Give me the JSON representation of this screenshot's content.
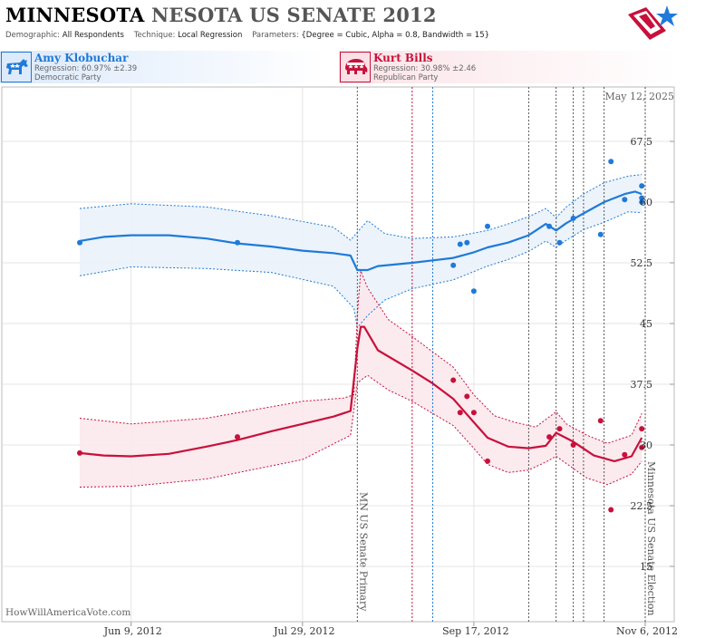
{
  "header": {
    "title_state": "MINNESOTA",
    "title_rest": "NESOTA US SENATE 2012",
    "demographic_label": "Demographic:",
    "demographic_value": "All Respondents",
    "technique_label": "Technique:",
    "technique_value": "Local Regression",
    "parameters_label": "Parameters:",
    "parameters_value": "{Degree = Cubic, Alpha = 0.8, Bandwidth = 15}",
    "logo_icon": "flag-star-icon"
  },
  "candidates": [
    {
      "name": "Amy Klobuchar",
      "regression": "Regression: 60.97% ±2.39",
      "party": "Democratic Party",
      "icon": "donkey-icon",
      "color": "#1f7ad8"
    },
    {
      "name": "Kurt Bills",
      "regression": "Regression: 30.98% ±2.46",
      "party": "Republican Party",
      "icon": "elephant-icon",
      "color": "#c8103b"
    }
  ],
  "chart": {
    "date_label": "May 12, 2025",
    "watermark": "HowWillAmericaVote.com",
    "primary_label": "MN US Senate Primary",
    "election_label": "Minnesota US Senate Election"
  },
  "chart_data": {
    "type": "scatter",
    "x_axis": {
      "type": "date",
      "range": [
        "2012-05-25",
        "2012-11-06"
      ],
      "ticks": [
        {
          "date": "2012-06-09",
          "label": "Jun 9, 2012"
        },
        {
          "date": "2012-07-29",
          "label": "Jul 29, 2012"
        },
        {
          "date": "2012-09-17",
          "label": "Sep 17, 2012"
        },
        {
          "date": "2012-11-06",
          "label": "Nov 6, 2012"
        }
      ]
    },
    "y_axis": {
      "range": [
        10,
        70
      ],
      "ticks": [
        15,
        22.5,
        30,
        37.5,
        45,
        52.5,
        60,
        67.5
      ],
      "tick_labels": [
        "15",
        "22.5",
        "30",
        "37.5",
        "45",
        "52.5",
        "60",
        "67.5"
      ],
      "position": "right"
    },
    "events": [
      {
        "date": "2012-08-14",
        "color": "#555555",
        "label_key": "primary"
      },
      {
        "date": "2012-08-30",
        "color": "#c8103b"
      },
      {
        "date": "2012-09-05",
        "color": "#1f7ad8"
      },
      {
        "date": "2012-10-03",
        "color": "#555555"
      },
      {
        "date": "2012-10-11",
        "color": "#555555"
      },
      {
        "date": "2012-10-16",
        "color": "#555555"
      },
      {
        "date": "2012-10-19",
        "color": "#555555"
      },
      {
        "date": "2012-10-25",
        "color": "#555555"
      },
      {
        "date": "2012-11-06",
        "color": "#555555",
        "label_key": "election"
      }
    ],
    "series": [
      {
        "name": "Amy Klobuchar",
        "color": "#1f7ad8",
        "band_fill": "#eaf2fb",
        "points": [
          [
            "2012-05-25",
            55.0
          ],
          [
            "2012-07-10",
            55.0
          ],
          [
            "2012-09-11",
            52.2
          ],
          [
            "2012-09-13",
            54.8
          ],
          [
            "2012-09-15",
            55.0
          ],
          [
            "2012-09-17",
            49.0
          ],
          [
            "2012-09-21",
            57.0
          ],
          [
            "2012-10-09",
            57.0
          ],
          [
            "2012-10-12",
            55.0
          ],
          [
            "2012-10-16",
            58.0
          ],
          [
            "2012-10-24",
            56.0
          ],
          [
            "2012-10-27",
            65.0
          ],
          [
            "2012-10-31",
            60.3
          ],
          [
            "2012-11-05",
            62.0
          ],
          [
            "2012-11-05",
            60.5
          ],
          [
            "2012-11-05",
            60.0
          ]
        ],
        "regression": [
          [
            "2012-05-25",
            55.2
          ],
          [
            "2012-06-01",
            55.7
          ],
          [
            "2012-06-09",
            55.9
          ],
          [
            "2012-06-20",
            55.9
          ],
          [
            "2012-07-01",
            55.5
          ],
          [
            "2012-07-10",
            54.9
          ],
          [
            "2012-07-20",
            54.5
          ],
          [
            "2012-07-29",
            54.0
          ],
          [
            "2012-08-07",
            53.7
          ],
          [
            "2012-08-12",
            53.4
          ],
          [
            "2012-08-14",
            51.6
          ],
          [
            "2012-08-17",
            51.6
          ],
          [
            "2012-08-20",
            52.1
          ],
          [
            "2012-08-30",
            52.5
          ],
          [
            "2012-09-05",
            52.8
          ],
          [
            "2012-09-11",
            53.1
          ],
          [
            "2012-09-17",
            53.8
          ],
          [
            "2012-09-21",
            54.4
          ],
          [
            "2012-09-27",
            55.0
          ],
          [
            "2012-10-03",
            55.9
          ],
          [
            "2012-10-08",
            57.3
          ],
          [
            "2012-10-11",
            56.5
          ],
          [
            "2012-10-14",
            57.4
          ],
          [
            "2012-10-19",
            58.6
          ],
          [
            "2012-10-25",
            60.0
          ],
          [
            "2012-10-31",
            61.0
          ],
          [
            "2012-11-03",
            61.3
          ],
          [
            "2012-11-05",
            61.0
          ]
        ],
        "upper": [
          [
            "2012-05-25",
            59.2
          ],
          [
            "2012-06-09",
            59.8
          ],
          [
            "2012-07-01",
            59.4
          ],
          [
            "2012-07-20",
            58.3
          ],
          [
            "2012-08-07",
            56.9
          ],
          [
            "2012-08-12",
            55.3
          ],
          [
            "2012-08-14",
            56.3
          ],
          [
            "2012-08-17",
            57.7
          ],
          [
            "2012-08-22",
            56.1
          ],
          [
            "2012-08-30",
            55.5
          ],
          [
            "2012-09-11",
            55.7
          ],
          [
            "2012-09-21",
            56.5
          ],
          [
            "2012-09-27",
            57.3
          ],
          [
            "2012-10-03",
            58.2
          ],
          [
            "2012-10-08",
            59.2
          ],
          [
            "2012-10-11",
            58.1
          ],
          [
            "2012-10-14",
            59.4
          ],
          [
            "2012-10-19",
            61.0
          ],
          [
            "2012-10-25",
            62.4
          ],
          [
            "2012-11-01",
            63.2
          ],
          [
            "2012-11-05",
            63.4
          ]
        ],
        "lower": [
          [
            "2012-05-25",
            50.9
          ],
          [
            "2012-06-09",
            52.0
          ],
          [
            "2012-07-01",
            51.8
          ],
          [
            "2012-07-20",
            51.3
          ],
          [
            "2012-08-07",
            49.6
          ],
          [
            "2012-08-13",
            46.9
          ],
          [
            "2012-08-14",
            44.5
          ],
          [
            "2012-08-17",
            46.0
          ],
          [
            "2012-08-22",
            47.9
          ],
          [
            "2012-08-30",
            49.3
          ],
          [
            "2012-09-11",
            50.4
          ],
          [
            "2012-09-21",
            52.1
          ],
          [
            "2012-09-27",
            52.9
          ],
          [
            "2012-10-03",
            53.9
          ],
          [
            "2012-10-08",
            55.2
          ],
          [
            "2012-10-11",
            54.4
          ],
          [
            "2012-10-14",
            55.3
          ],
          [
            "2012-10-19",
            56.6
          ],
          [
            "2012-10-25",
            57.5
          ],
          [
            "2012-11-01",
            58.8
          ],
          [
            "2012-11-05",
            58.7
          ]
        ]
      },
      {
        "name": "Kurt Bills",
        "color": "#c8103b",
        "band_fill": "#fbe8ec",
        "points": [
          [
            "2012-05-25",
            29.0
          ],
          [
            "2012-07-10",
            31.0
          ],
          [
            "2012-09-11",
            38.0
          ],
          [
            "2012-09-13",
            34.0
          ],
          [
            "2012-09-15",
            36.0
          ],
          [
            "2012-09-17",
            34.0
          ],
          [
            "2012-09-21",
            28.0
          ],
          [
            "2012-10-09",
            31.0
          ],
          [
            "2012-10-12",
            32.0
          ],
          [
            "2012-10-16",
            30.0
          ],
          [
            "2012-10-24",
            33.0
          ],
          [
            "2012-10-27",
            22.0
          ],
          [
            "2012-10-31",
            28.8
          ],
          [
            "2012-11-05",
            32.0
          ],
          [
            "2012-11-05",
            29.7
          ]
        ],
        "regression": [
          [
            "2012-05-25",
            29.0
          ],
          [
            "2012-06-01",
            28.7
          ],
          [
            "2012-06-09",
            28.6
          ],
          [
            "2012-06-20",
            28.9
          ],
          [
            "2012-07-01",
            29.8
          ],
          [
            "2012-07-10",
            30.6
          ],
          [
            "2012-07-20",
            31.7
          ],
          [
            "2012-07-29",
            32.6
          ],
          [
            "2012-08-07",
            33.5
          ],
          [
            "2012-08-12",
            34.2
          ],
          [
            "2012-08-14",
            41.9
          ],
          [
            "2012-08-15",
            44.6
          ],
          [
            "2012-08-16",
            44.6
          ],
          [
            "2012-08-20",
            41.7
          ],
          [
            "2012-08-30",
            39.2
          ],
          [
            "2012-09-05",
            37.6
          ],
          [
            "2012-09-11",
            35.7
          ],
          [
            "2012-09-17",
            32.8
          ],
          [
            "2012-09-21",
            30.9
          ],
          [
            "2012-09-27",
            29.8
          ],
          [
            "2012-10-03",
            29.6
          ],
          [
            "2012-10-08",
            29.9
          ],
          [
            "2012-10-11",
            31.5
          ],
          [
            "2012-10-16",
            30.4
          ],
          [
            "2012-10-22",
            28.7
          ],
          [
            "2012-10-28",
            28.0
          ],
          [
            "2012-11-02",
            28.6
          ],
          [
            "2012-11-05",
            30.9
          ]
        ],
        "upper": [
          [
            "2012-05-25",
            33.3
          ],
          [
            "2012-06-09",
            32.6
          ],
          [
            "2012-07-01",
            33.3
          ],
          [
            "2012-07-29",
            35.4
          ],
          [
            "2012-08-10",
            35.8
          ],
          [
            "2012-08-13",
            36.2
          ],
          [
            "2012-08-14",
            46.0
          ],
          [
            "2012-08-15",
            51.5
          ],
          [
            "2012-08-17",
            49.4
          ],
          [
            "2012-08-23",
            45.5
          ],
          [
            "2012-08-30",
            43.4
          ],
          [
            "2012-09-11",
            39.6
          ],
          [
            "2012-09-17",
            36.2
          ],
          [
            "2012-09-23",
            33.6
          ],
          [
            "2012-09-29",
            32.8
          ],
          [
            "2012-10-05",
            32.2
          ],
          [
            "2012-10-11",
            34.1
          ],
          [
            "2012-10-14",
            32.6
          ],
          [
            "2012-10-20",
            31.2
          ],
          [
            "2012-10-26",
            30.2
          ],
          [
            "2012-11-02",
            31.2
          ],
          [
            "2012-11-05",
            33.9
          ]
        ],
        "lower": [
          [
            "2012-05-25",
            24.8
          ],
          [
            "2012-06-09",
            24.9
          ],
          [
            "2012-07-01",
            25.8
          ],
          [
            "2012-07-29",
            28.2
          ],
          [
            "2012-08-12",
            31.2
          ],
          [
            "2012-08-14",
            37.6
          ],
          [
            "2012-08-15",
            38.0
          ],
          [
            "2012-08-17",
            38.6
          ],
          [
            "2012-08-23",
            36.8
          ],
          [
            "2012-08-30",
            35.4
          ],
          [
            "2012-09-11",
            32.4
          ],
          [
            "2012-09-17",
            29.6
          ],
          [
            "2012-09-21",
            27.6
          ],
          [
            "2012-09-27",
            26.6
          ],
          [
            "2012-10-03",
            26.9
          ],
          [
            "2012-10-08",
            27.9
          ],
          [
            "2012-10-11",
            28.6
          ],
          [
            "2012-10-14",
            27.7
          ],
          [
            "2012-10-20",
            25.9
          ],
          [
            "2012-10-26",
            25.1
          ],
          [
            "2012-11-02",
            26.4
          ],
          [
            "2012-11-05",
            28.0
          ]
        ]
      }
    ]
  }
}
